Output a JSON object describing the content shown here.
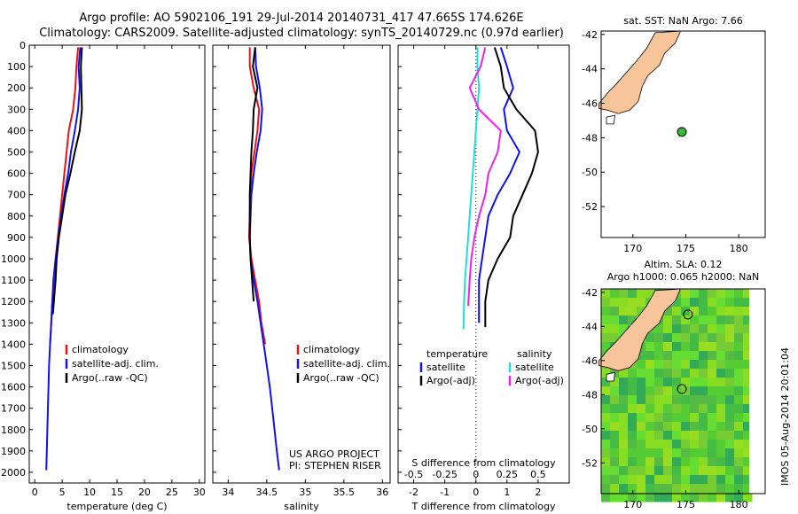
{
  "header": {
    "line1": "Argo profile: AO 5902106_191 29-Jul-2014 20140731_417 47.665S 174.626E",
    "line2": "Climatology: CARS2009. Satellite-adjusted climatology: synTS_20140729.nc (0.97d earlier)"
  },
  "credit": {
    "project": "US ARGO PROJECT",
    "pi": "PI: STEPHEN RISER"
  },
  "timestamp": "IMOS 05-Aug-2014 20:01:04",
  "colors": {
    "climatology": "#ee1111",
    "satellite": "#1111ee",
    "argo": "#000000",
    "sal_satellite": "#22dddd",
    "sal_argo": "#ee22ee",
    "land": "#f8c49a",
    "float": "#33bb33"
  },
  "chart_data": [
    {
      "type": "line",
      "id": "temperature",
      "xlabel": "temperature (deg C)",
      "xlim": [
        -1,
        31
      ],
      "ylim": [
        0,
        2050
      ],
      "xticks": [
        0,
        5,
        10,
        15,
        20,
        25,
        30
      ],
      "yticks": [
        0,
        100,
        200,
        300,
        400,
        500,
        600,
        700,
        800,
        900,
        1000,
        1100,
        1200,
        1300,
        1400,
        1500,
        1600,
        1700,
        1800,
        1900,
        2000
      ],
      "legend": [
        "climatology",
        "satellite-adj. clim.",
        "Argo(..raw -QC)"
      ],
      "series": [
        {
          "name": "climatology",
          "color": "#ee1111",
          "points": [
            [
              7.9,
              10
            ],
            [
              7.6,
              100
            ],
            [
              7.4,
              200
            ],
            [
              7.0,
              300
            ],
            [
              6.2,
              400
            ],
            [
              5.8,
              500
            ],
            [
              5.4,
              600
            ],
            [
              5.0,
              700
            ],
            [
              4.6,
              800
            ],
            [
              4.2,
              900
            ],
            [
              3.8,
              1000
            ],
            [
              3.5,
              1100
            ],
            [
              3.2,
              1200
            ],
            [
              3.0,
              1300
            ],
            [
              2.8,
              1400
            ]
          ]
        },
        {
          "name": "satellite-adj. clim.",
          "color": "#1111ee",
          "points": [
            [
              8.3,
              10
            ],
            [
              8.0,
              100
            ],
            [
              8.2,
              200
            ],
            [
              7.9,
              300
            ],
            [
              7.3,
              400
            ],
            [
              6.6,
              500
            ],
            [
              6.1,
              600
            ],
            [
              5.4,
              700
            ],
            [
              4.8,
              800
            ],
            [
              4.3,
              900
            ],
            [
              3.8,
              1000
            ],
            [
              3.4,
              1100
            ],
            [
              3.2,
              1200
            ],
            [
              3.0,
              1300
            ],
            [
              2.8,
              1400
            ],
            [
              2.6,
              1500
            ],
            [
              2.5,
              1600
            ],
            [
              2.4,
              1700
            ],
            [
              2.3,
              1800
            ],
            [
              2.2,
              1900
            ],
            [
              2.1,
              1990
            ]
          ]
        },
        {
          "name": "Argo(..raw -QC)",
          "color": "#000000",
          "points": [
            [
              8.6,
              10
            ],
            [
              8.4,
              100
            ],
            [
              8.5,
              200
            ],
            [
              8.6,
              300
            ],
            [
              8.2,
              400
            ],
            [
              7.3,
              500
            ],
            [
              6.5,
              600
            ],
            [
              5.6,
              700
            ],
            [
              5.0,
              800
            ],
            [
              4.4,
              900
            ],
            [
              4.0,
              1000
            ],
            [
              3.8,
              1100
            ],
            [
              3.5,
              1200
            ],
            [
              3.3,
              1260
            ]
          ]
        }
      ]
    },
    {
      "type": "line",
      "id": "salinity",
      "xlabel": "salinity",
      "xlim": [
        33.8,
        36.1
      ],
      "ylim": [
        0,
        2050
      ],
      "xticks": [
        34,
        34.5,
        35,
        35.5,
        36
      ],
      "legend": [
        "climatology",
        "satellite-adj. clim.",
        "Argo(..raw -QC)"
      ],
      "series": [
        {
          "name": "climatology",
          "color": "#ee1111",
          "points": [
            [
              34.28,
              10
            ],
            [
              34.28,
              100
            ],
            [
              34.33,
              200
            ],
            [
              34.4,
              300
            ],
            [
              34.38,
              400
            ],
            [
              34.34,
              500
            ],
            [
              34.3,
              600
            ],
            [
              34.29,
              700
            ],
            [
              34.28,
              800
            ],
            [
              34.27,
              900
            ],
            [
              34.3,
              1000
            ],
            [
              34.35,
              1100
            ],
            [
              34.4,
              1200
            ],
            [
              34.43,
              1300
            ],
            [
              34.48,
              1400
            ]
          ]
        },
        {
          "name": "satellite-adj. clim.",
          "color": "#1111ee",
          "points": [
            [
              34.35,
              10
            ],
            [
              34.36,
              100
            ],
            [
              34.41,
              200
            ],
            [
              34.44,
              300
            ],
            [
              34.42,
              400
            ],
            [
              34.37,
              500
            ],
            [
              34.33,
              600
            ],
            [
              34.3,
              700
            ],
            [
              34.29,
              800
            ],
            [
              34.28,
              900
            ],
            [
              34.29,
              1000
            ],
            [
              34.33,
              1100
            ],
            [
              34.38,
              1200
            ],
            [
              34.42,
              1300
            ],
            [
              34.46,
              1400
            ],
            [
              34.5,
              1500
            ],
            [
              34.54,
              1600
            ],
            [
              34.57,
              1700
            ],
            [
              34.6,
              1800
            ],
            [
              34.63,
              1900
            ],
            [
              34.66,
              1990
            ]
          ]
        },
        {
          "name": "Argo(..raw -QC)",
          "color": "#000000",
          "points": [
            [
              34.35,
              10
            ],
            [
              34.32,
              100
            ],
            [
              34.38,
              200
            ],
            [
              34.33,
              300
            ],
            [
              34.32,
              400
            ],
            [
              34.3,
              500
            ],
            [
              34.29,
              600
            ],
            [
              34.28,
              700
            ],
            [
              34.28,
              800
            ],
            [
              34.28,
              900
            ],
            [
              34.29,
              1000
            ],
            [
              34.31,
              1100
            ],
            [
              34.33,
              1200
            ]
          ]
        }
      ]
    },
    {
      "type": "line",
      "id": "difference",
      "xlabel": "T difference from climatology",
      "xlabel_top": "S difference from climatology",
      "xlim": [
        -2.5,
        3.0
      ],
      "xticks": [
        -2,
        -1,
        0,
        1,
        2
      ],
      "xticks_top": [
        "-0.5",
        "-0.25",
        "0",
        "0.25",
        "0.5"
      ],
      "ylim": [
        0,
        2050
      ],
      "legend_left": {
        "title": "temperature",
        "items": [
          "satellite",
          "Argo(-adj)"
        ]
      },
      "legend_right": {
        "title": "salinity",
        "items": [
          "satellite",
          "Argo(-adj)"
        ]
      },
      "series": [
        {
          "name": "temperature satellite",
          "color": "#1111ee",
          "points": [
            [
              0.8,
              10
            ],
            [
              1.0,
              100
            ],
            [
              1.2,
              200
            ],
            [
              0.9,
              300
            ],
            [
              1.0,
              400
            ],
            [
              1.4,
              500
            ],
            [
              1.1,
              600
            ],
            [
              0.7,
              700
            ],
            [
              0.4,
              800
            ],
            [
              0.3,
              900
            ],
            [
              0.2,
              1000
            ],
            [
              0.1,
              1100
            ],
            [
              0.1,
              1200
            ],
            [
              0.1,
              1300
            ]
          ]
        },
        {
          "name": "temperature Argo(-adj)",
          "color": "#000000",
          "points": [
            [
              0.6,
              10
            ],
            [
              0.8,
              100
            ],
            [
              0.9,
              200
            ],
            [
              1.3,
              300
            ],
            [
              1.9,
              400
            ],
            [
              2.0,
              500
            ],
            [
              1.8,
              600
            ],
            [
              1.5,
              700
            ],
            [
              1.2,
              800
            ],
            [
              1.1,
              900
            ],
            [
              0.7,
              1000
            ],
            [
              0.4,
              1100
            ],
            [
              0.3,
              1200
            ],
            [
              0.3,
              1320
            ]
          ]
        },
        {
          "name": "salinity satellite",
          "color": "#22dddd",
          "points": [
            [
              0.05,
              10
            ],
            [
              0.05,
              100
            ],
            [
              0.1,
              200
            ],
            [
              0.05,
              300
            ],
            [
              0.0,
              400
            ],
            [
              -0.05,
              500
            ],
            [
              -0.1,
              600
            ],
            [
              -0.15,
              700
            ],
            [
              -0.2,
              800
            ],
            [
              -0.25,
              900
            ],
            [
              -0.3,
              1000
            ],
            [
              -0.35,
              1100
            ],
            [
              -0.38,
              1200
            ],
            [
              -0.4,
              1330
            ]
          ]
        },
        {
          "name": "salinity Argo(-adj)",
          "color": "#ee22ee",
          "points": [
            [
              0.3,
              10
            ],
            [
              0.15,
              100
            ],
            [
              -0.2,
              200
            ],
            [
              0.1,
              300
            ],
            [
              0.8,
              400
            ],
            [
              0.7,
              500
            ],
            [
              0.4,
              600
            ],
            [
              0.3,
              700
            ],
            [
              0.1,
              800
            ],
            [
              -0.05,
              900
            ],
            [
              -0.15,
              1000
            ],
            [
              -0.2,
              1100
            ],
            [
              -0.25,
              1220
            ]
          ]
        }
      ]
    },
    {
      "type": "scatter",
      "id": "sst_map",
      "title": "sat. SST: NaN Argo: 7.66",
      "xlim": [
        167,
        182.5
      ],
      "ylim": [
        -53.8,
        -41.8
      ],
      "xticks": [
        170,
        175,
        180
      ],
      "yticks": [
        -42,
        -44,
        -46,
        -48,
        -50,
        -52
      ],
      "points": [
        {
          "x": 174.626,
          "y": -47.665
        }
      ]
    },
    {
      "type": "heatmap",
      "id": "sla_map",
      "title1": "Altim. SLA: 0.12",
      "title2": "Argo h1000: 0.065 h2000: NaN",
      "xlim": [
        167,
        182.5
      ],
      "ylim": [
        -53.8,
        -41.8
      ],
      "xticks": [
        170,
        175,
        180
      ],
      "yticks": [
        -42,
        -44,
        -46,
        -48,
        -50,
        -52
      ],
      "points": [
        {
          "x": 174.626,
          "y": -47.665
        },
        {
          "x": 175.2,
          "y": -43.3
        }
      ]
    }
  ]
}
